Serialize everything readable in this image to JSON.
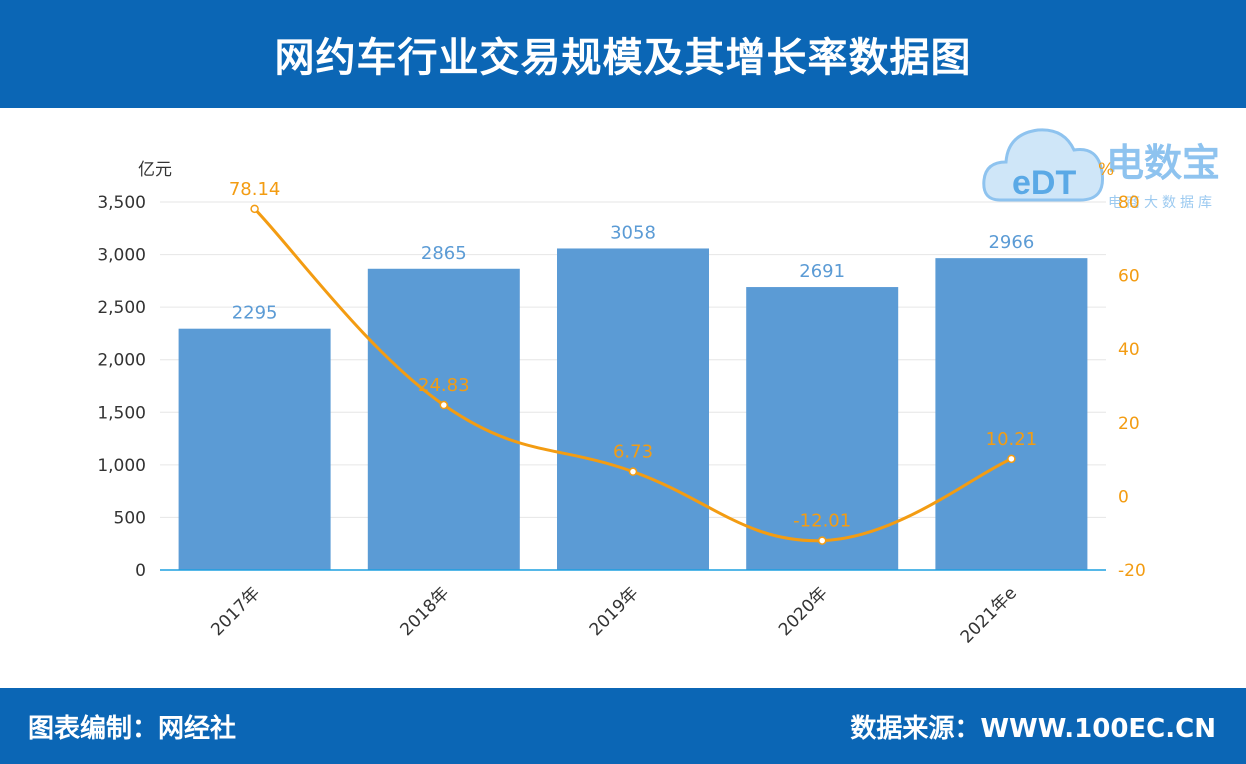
{
  "header": {
    "title": "网约车行业交易规模及其增长率数据图"
  },
  "footer": {
    "left": "图表编制：网经社",
    "right": "数据来源：WWW.100EC.CN"
  },
  "logo": {
    "brand": "电数宝",
    "sub": "电商大数据库",
    "mark": "eDT"
  },
  "colors": {
    "header_bg": "#0b66b5",
    "bar": "#5b9bd5",
    "line": "#f39c12",
    "axis": "#1fa0e0"
  },
  "chart_data": {
    "type": "bar",
    "categories": [
      "2017年",
      "2018年",
      "2019年",
      "2020年",
      "2021年e"
    ],
    "series": [
      {
        "type": "bar",
        "axis": "left",
        "values": [
          2295,
          2865,
          3058,
          2691,
          2966
        ]
      },
      {
        "type": "line",
        "axis": "right",
        "values": [
          78.14,
          24.83,
          6.73,
          -12.01,
          10.21
        ]
      }
    ],
    "y_left": {
      "unit": "亿元",
      "range": [
        0,
        3500
      ],
      "ticks": [
        0,
        500,
        1000,
        1500,
        2000,
        2500,
        3000,
        3500
      ],
      "tick_labels": [
        "0",
        "500",
        "1,000",
        "1,500",
        "2,000",
        "2,500",
        "3,000",
        "3,500"
      ]
    },
    "y_right": {
      "unit": "%",
      "range": [
        -20,
        80
      ],
      "ticks": [
        -20,
        0,
        20,
        40,
        60,
        80
      ],
      "tick_labels": [
        "-20",
        "0",
        "20",
        "40",
        "60",
        "80"
      ]
    },
    "bar_labels": [
      "2295",
      "2865",
      "3058",
      "2691",
      "2966"
    ],
    "line_labels": [
      "78.14",
      "24.83",
      "6.73",
      "-12.01",
      "10.21"
    ],
    "grid": true
  }
}
